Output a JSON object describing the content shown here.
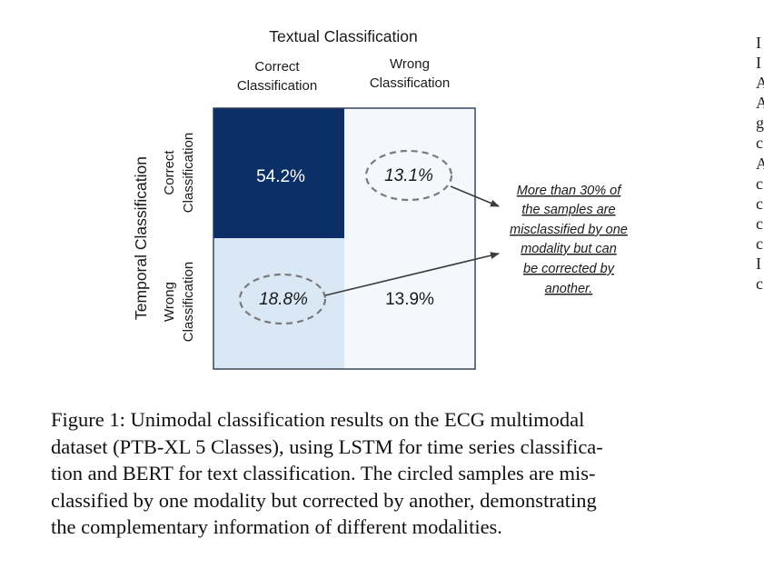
{
  "figure": {
    "title": "Textual Classification",
    "column_headers": [
      [
        "Correct",
        "Classification"
      ],
      [
        "Wrong",
        "Classification"
      ]
    ],
    "row_axis_title": "Temporal Classification",
    "row_headers": [
      [
        "Correct",
        "Classification"
      ],
      [
        "Wrong",
        "Classification"
      ]
    ],
    "cells": [
      [
        "54.2%",
        "13.1%"
      ],
      [
        "18.8%",
        "13.9%"
      ]
    ],
    "cell_colors": [
      [
        "#0b2f66",
        "#f4f8fd"
      ],
      [
        "#dae7f5",
        "#f4f8fd"
      ]
    ],
    "highlighted_cells": [
      [
        0,
        1
      ],
      [
        1,
        0
      ]
    ],
    "annotation_lines": [
      "More than 30% of",
      "the samples are",
      "misclassified by one",
      "modality but can",
      "be corrected by",
      "another."
    ]
  },
  "caption": {
    "lines": [
      "Figure 1: Unimodal classification results on the ECG multimodal",
      "dataset (PTB-XL 5 Classes), using LSTM for time series classifica-",
      "tion and BERT for text classification. The circled samples are mis-",
      "classified by one modality but corrected by another, demonstrating",
      "the complementary information of different modalities."
    ]
  },
  "adjacent_column_fragments": [
    "I",
    "I",
    "A",
    "A",
    "g",
    "c",
    "A",
    "c",
    "c",
    "c",
    "c",
    "I",
    "c"
  ],
  "colors": {
    "dark_cell": "#0b2f66",
    "light_blue_cell": "#dae7f5",
    "pale_cell": "#f4f8fd",
    "frame": "#2b3a4f",
    "arrow": "#3c3c3c",
    "dashed_circle": "#7a7a7a"
  }
}
